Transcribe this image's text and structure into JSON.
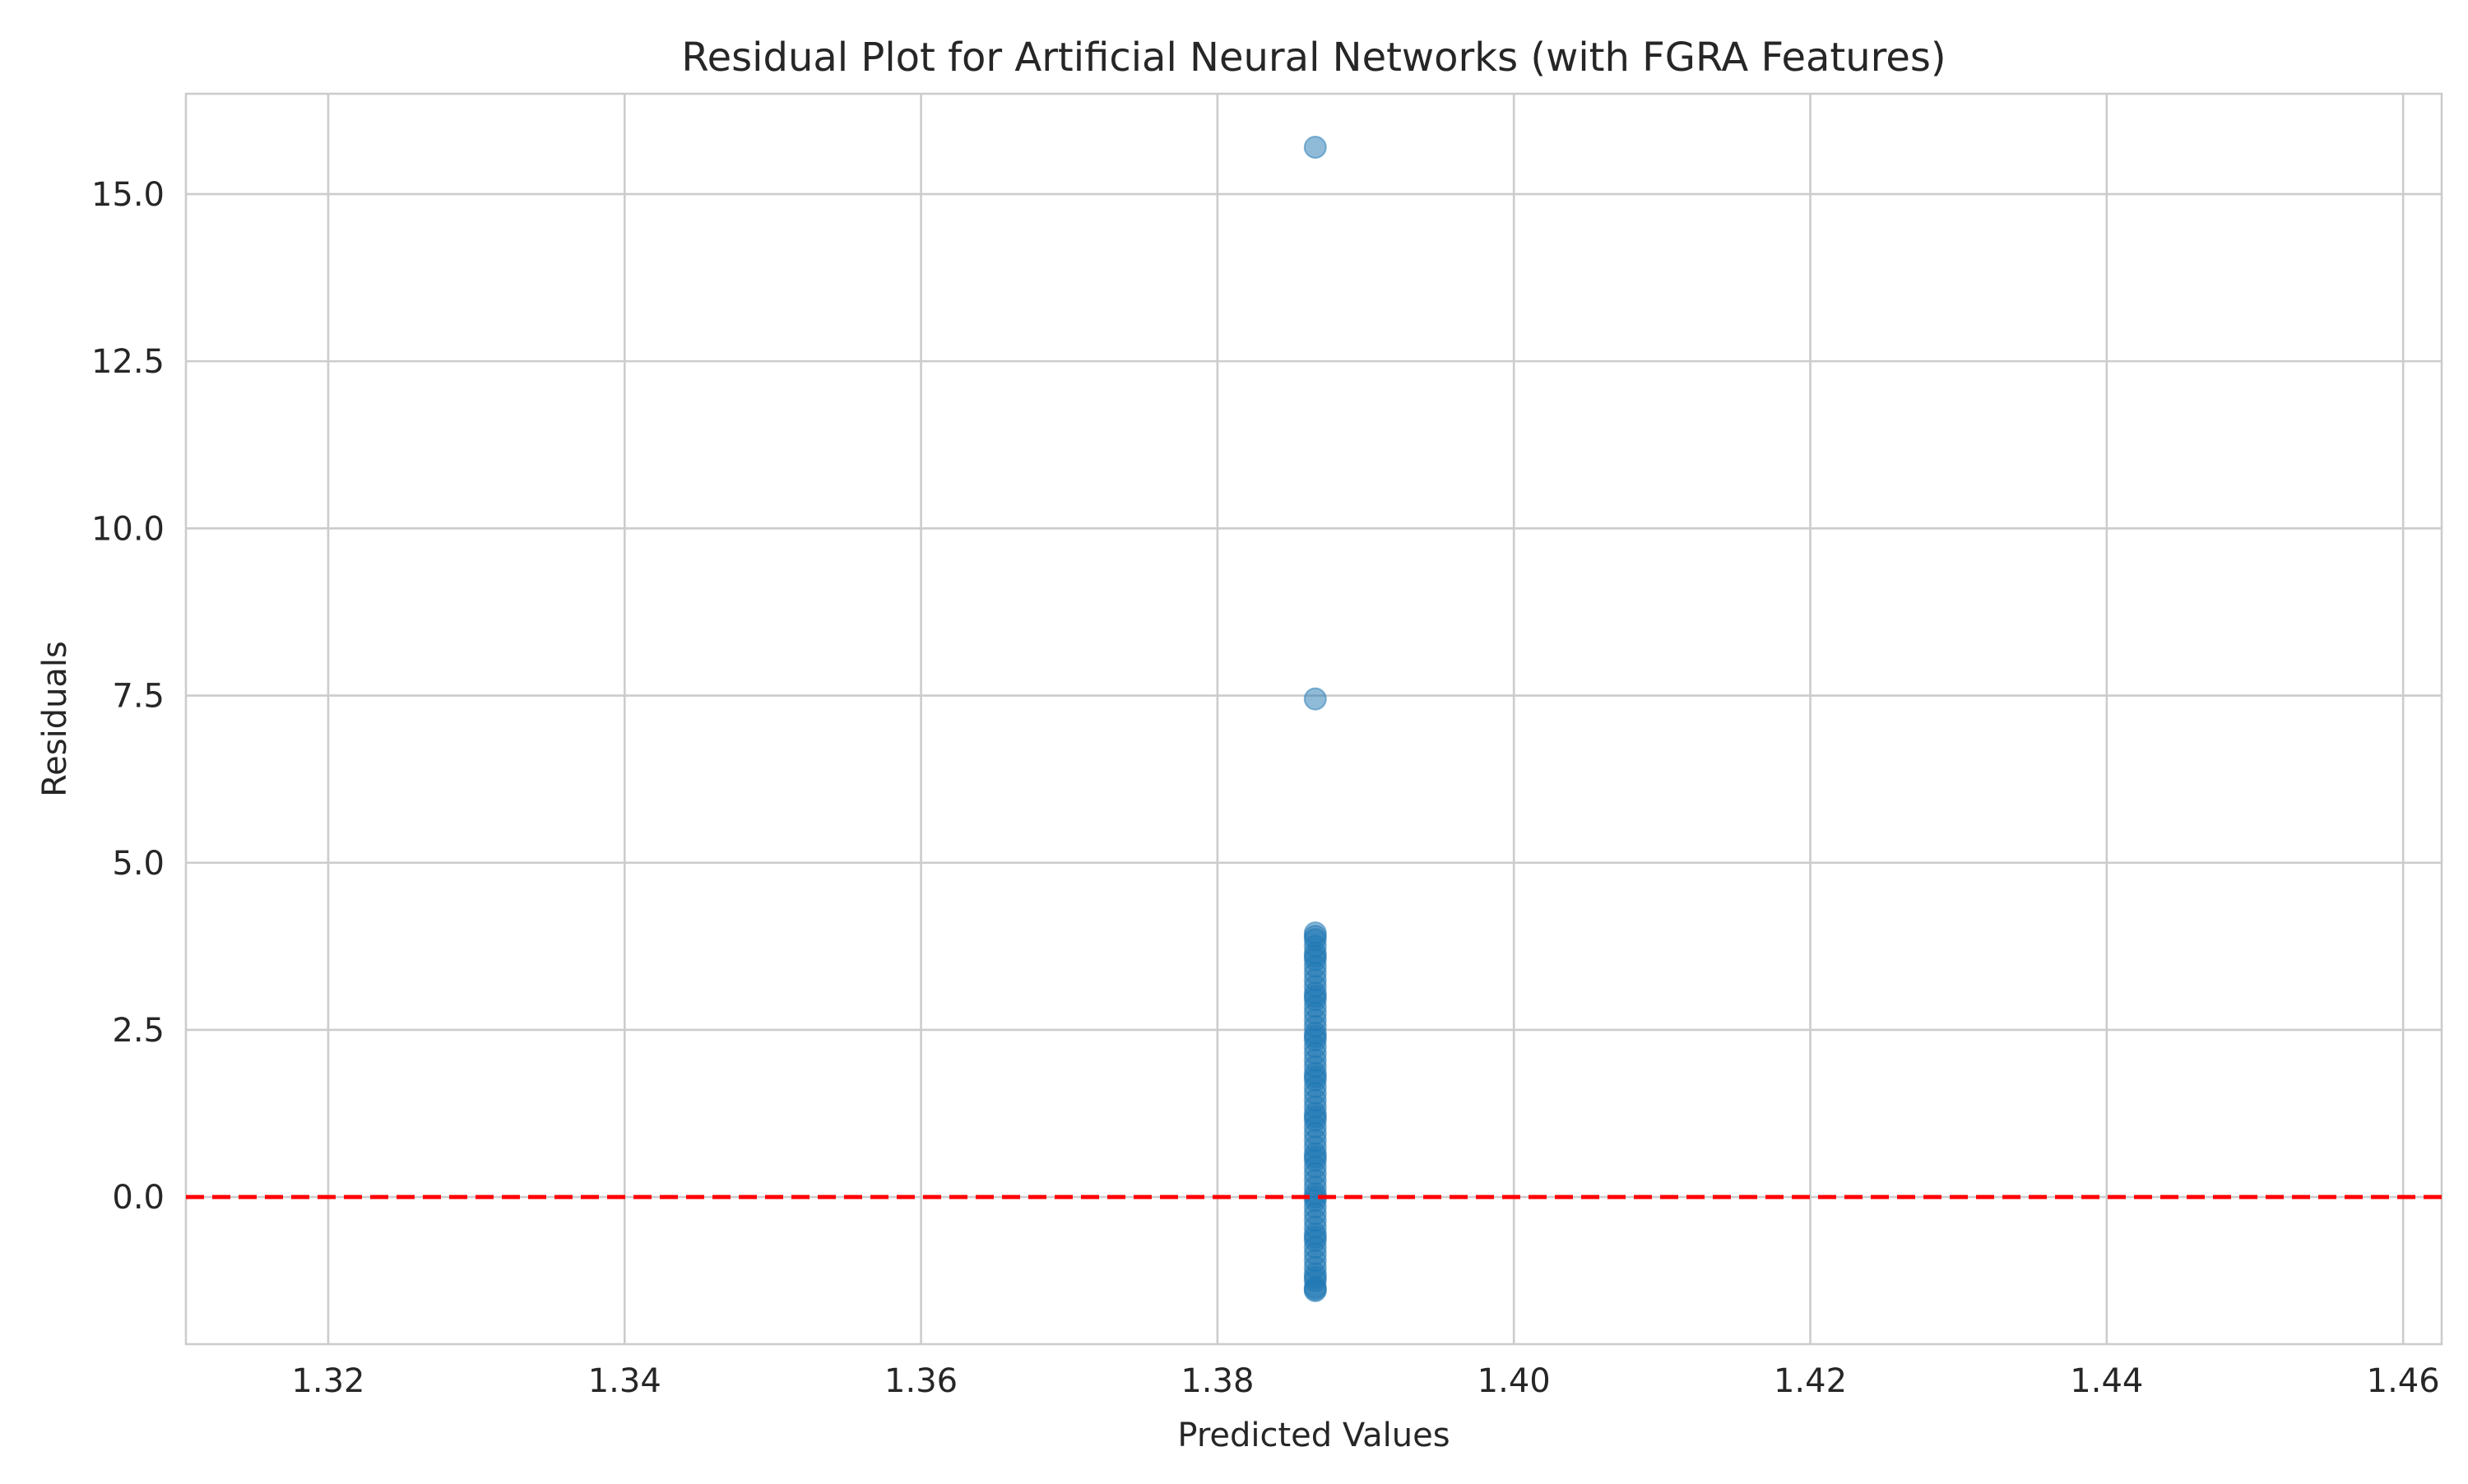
{
  "chart_data": {
    "type": "scatter",
    "title": "Residual Plot for Artificial Neural Networks (with FGRA Features)",
    "xlabel": "Predicted Values",
    "ylabel": "Residuals",
    "xlim": [
      1.3104,
      1.4626
    ],
    "ylim": [
      -2.2,
      16.5
    ],
    "xticks": [
      1.32,
      1.34,
      1.36,
      1.38,
      1.4,
      1.42,
      1.44,
      1.46
    ],
    "xtick_labels": [
      "1.32",
      "1.34",
      "1.36",
      "1.38",
      "1.40",
      "1.42",
      "1.44",
      "1.46"
    ],
    "yticks": [
      0.0,
      2.5,
      5.0,
      7.5,
      10.0,
      12.5,
      15.0
    ],
    "ytick_labels": [
      "0.0",
      "2.5",
      "5.0",
      "7.5",
      "10.0",
      "12.5",
      "15.0"
    ],
    "grid": true,
    "point_color": "#1f77b4",
    "point_alpha": 0.5,
    "reference_line": {
      "y": 0.0,
      "color": "#ff0000",
      "style": "dashed"
    },
    "series": [
      {
        "x": [
          1.3866,
          1.3866,
          1.3866,
          1.3866,
          1.3866,
          1.3866,
          1.3866,
          1.3866,
          1.3866,
          1.3866,
          1.3866,
          1.3866,
          1.3866,
          1.3866,
          1.3866,
          1.3866,
          1.3866,
          1.3866,
          1.3866,
          1.3866,
          1.3866,
          1.3866,
          1.3866,
          1.3866,
          1.3866,
          1.3866,
          1.3866,
          1.3866,
          1.3866,
          1.3866,
          1.3866,
          1.3866,
          1.3866,
          1.3866,
          1.3866,
          1.3866,
          1.3866,
          1.3866,
          1.3866,
          1.3866,
          1.3866,
          1.3866,
          1.3866,
          1.3866,
          1.3866,
          1.3866,
          1.3866,
          1.3866,
          1.3866,
          1.3866,
          1.3866,
          1.3866,
          1.3866,
          1.3866,
          1.3866,
          1.3866,
          1.3866,
          1.3866,
          1.3866,
          1.3866,
          1.3866,
          1.3866,
          1.3866,
          1.3866,
          1.3866,
          1.3866,
          1.3866,
          1.3866
        ],
        "y": [
          15.7,
          7.45,
          3.95,
          3.85,
          3.75,
          3.65,
          3.55,
          3.45,
          3.35,
          3.25,
          3.15,
          3.05,
          2.95,
          2.85,
          2.75,
          2.65,
          2.55,
          2.45,
          2.35,
          2.25,
          2.15,
          2.05,
          1.95,
          1.85,
          1.75,
          1.65,
          1.55,
          1.45,
          1.35,
          1.25,
          1.15,
          1.05,
          0.95,
          0.85,
          0.75,
          0.65,
          0.55,
          0.45,
          0.35,
          0.25,
          0.15,
          0.05,
          -0.05,
          -0.15,
          -0.25,
          -0.35,
          -0.45,
          -0.55,
          -0.65,
          -0.75,
          -0.85,
          -0.95,
          -1.05,
          -1.15,
          -1.25,
          -1.35,
          -1.4,
          3.9,
          3.6,
          3.0,
          2.4,
          1.8,
          1.2,
          0.6,
          0.0,
          -0.6,
          -1.2,
          -1.38
        ]
      }
    ]
  }
}
